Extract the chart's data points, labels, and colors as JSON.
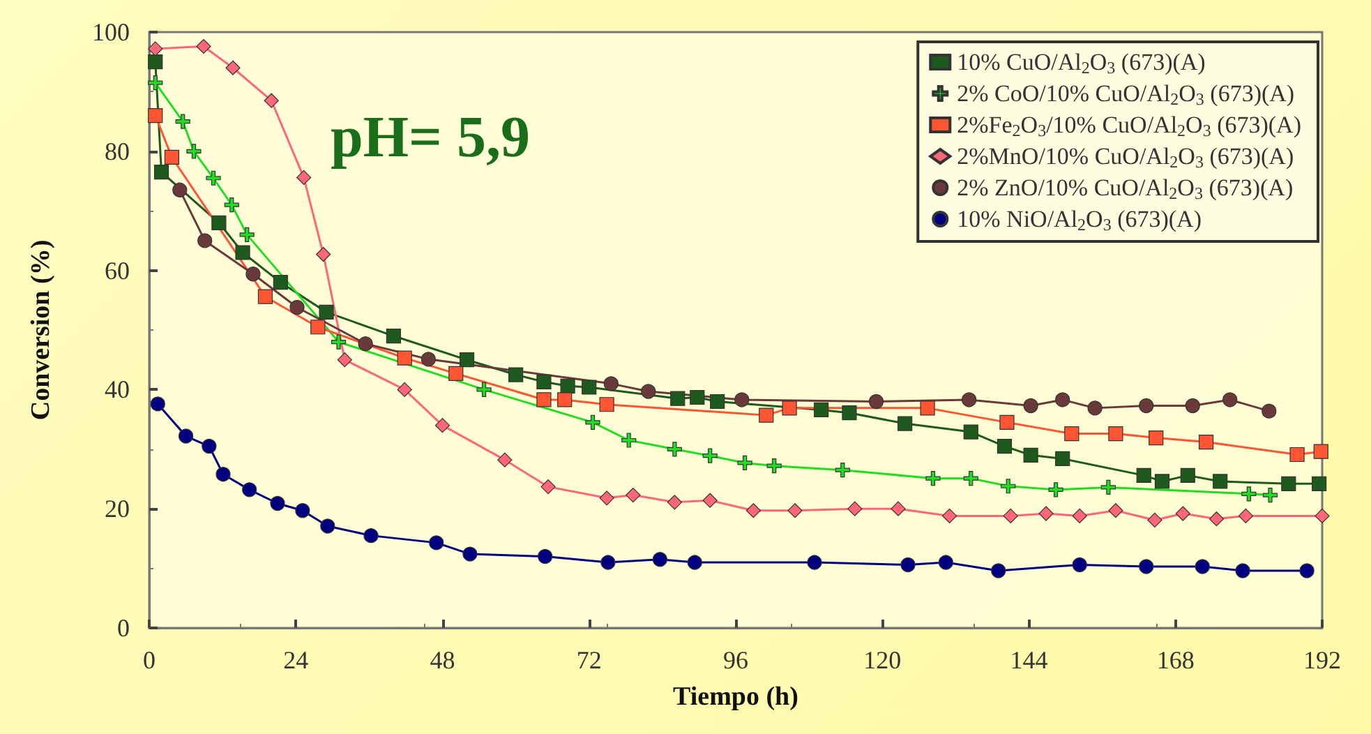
{
  "chart_data": {
    "type": "line",
    "xlabel": "Tiempo (h)",
    "ylabel": "Conversion (%)",
    "xlim": [
      0,
      192
    ],
    "xticks": [
      0,
      24,
      48,
      72,
      96,
      120,
      144,
      168,
      192
    ],
    "ylim": [
      0,
      100
    ],
    "yticks": [
      0,
      20,
      40,
      60,
      80,
      100
    ],
    "grid": false,
    "legend": "top right",
    "line_style": "solid",
    "annotations": [
      "pH= 5,9"
    ],
    "series": [
      {
        "name": "10% CuO/Al$_{2}$O$_{3}$ (673)(A)",
        "color": "#1e5a1e",
        "marker": "square",
        "x": [
          1,
          2,
          11.4,
          15.3,
          21.5,
          29,
          40,
          52,
          60,
          64.6,
          68.5,
          72,
          86.5,
          89.7,
          93,
          110,
          114.6,
          123.7,
          134.5,
          140,
          144.3,
          149.5,
          162.8,
          165.8,
          170,
          175.3,
          186.5,
          191.5
        ],
        "values": [
          95,
          76.5,
          68,
          63,
          58,
          53,
          49,
          45,
          42.5,
          41.3,
          40.6,
          40.4,
          38.5,
          38.7,
          38,
          36.6,
          36.1,
          34.3,
          32.9,
          30.5,
          29,
          28.4,
          25.6,
          24.6,
          25.6,
          24.6,
          24.2,
          24.2
        ]
      },
      {
        "name": "2% CoO/10% CuO/Al$_{2}$O$_{3}$ (673)(A)",
        "color": "#22dd22",
        "marker": "cross",
        "x": [
          1,
          5.5,
          7.3,
          10.5,
          13.5,
          16,
          31,
          54.8,
          72.6,
          78.5,
          86,
          91.8,
          97.5,
          102.3,
          113.5,
          128.3,
          134.5,
          140.6,
          148.4,
          157,
          180,
          183.5
        ],
        "values": [
          91.5,
          85,
          80,
          75.5,
          71,
          66,
          48,
          40,
          34.5,
          31.5,
          30,
          28.9,
          27.7,
          27.2,
          26.5,
          25.1,
          25.1,
          23.8,
          23.2,
          23.6,
          22.5,
          22.3
        ]
      },
      {
        "name": "2%Fe$_{2}$O$_{3}$/10% CuO/Al$_{2}$O$_{3}$ (673)(A)",
        "color": "#ff5533",
        "marker": "square",
        "x": [
          1,
          3.7,
          19,
          27.6,
          41.8,
          50.2,
          64.6,
          68,
          74.9,
          101,
          104.8,
          127.4,
          140.4,
          151,
          158.2,
          164.8,
          173,
          187.9,
          191.8
        ],
        "values": [
          86,
          79,
          55.6,
          50.5,
          45.3,
          42.7,
          38.3,
          38.3,
          37.5,
          35.7,
          36.9,
          36.9,
          34.5,
          32.6,
          32.6,
          31.9,
          31.2,
          29.1,
          29.6
        ]
      },
      {
        "name": "2%MnO/10% CuO/Al$_{2}$O$_{3}$ (673)(A)",
        "color": "#ff6677",
        "marker": "diamond",
        "x": [
          1,
          8.9,
          13.7,
          20,
          25.3,
          28.5,
          32,
          41.8,
          48,
          58.2,
          65.3,
          74.9,
          79.2,
          86,
          91.8,
          98.9,
          105.7,
          115.5,
          122.6,
          131,
          141,
          146.8,
          152.3,
          158.2,
          164.6,
          169.2,
          174.7,
          179.5,
          192
        ],
        "values": [
          97.2,
          97.6,
          94,
          88.5,
          75.6,
          62.7,
          45,
          40,
          34,
          28.2,
          23.7,
          21.8,
          22.3,
          21.1,
          21.4,
          19.7,
          19.7,
          20,
          20,
          18.8,
          18.8,
          19.2,
          18.8,
          19.7,
          18.1,
          19.2,
          18.3,
          18.8,
          18.8
        ]
      },
      {
        "name": "2% ZnO/10% CuO/Al$_{2}$O$_{3}$ (673)(A)",
        "color": "#6a3a3a",
        "marker": "circle",
        "x": [
          5,
          9.1,
          17,
          24.2,
          35.4,
          45.7,
          75.6,
          81.7,
          97,
          119,
          134.2,
          144.3,
          149.5,
          154.8,
          163.2,
          170.8,
          176.9,
          183.3
        ],
        "values": [
          73.5,
          65,
          59.4,
          53.8,
          47.7,
          45.1,
          41,
          39.7,
          38.3,
          38,
          38.3,
          37.3,
          38.3,
          36.9,
          37.3,
          37.3,
          38.3,
          36.4
        ]
      },
      {
        "name": "10% NiO/Al$_{2}$O$_{3}$ (673)(A)",
        "color": "#000080",
        "marker": "circle",
        "x": [
          1.4,
          6,
          9.8,
          12.1,
          16.4,
          21,
          25.1,
          29.2,
          36.3,
          47,
          52.5,
          64.8,
          75.1,
          83.6,
          89.3,
          108.9,
          124.2,
          130.4,
          139,
          152.3,
          163.2,
          172.4,
          179,
          189.5
        ],
        "values": [
          37.6,
          32.2,
          30.5,
          25.8,
          23.2,
          20.9,
          19.7,
          17.1,
          15.5,
          14.3,
          12.4,
          12,
          11,
          11.5,
          11,
          11,
          10.6,
          11,
          9.6,
          10.6,
          10.3,
          10.3,
          9.6,
          9.6
        ]
      }
    ]
  }
}
